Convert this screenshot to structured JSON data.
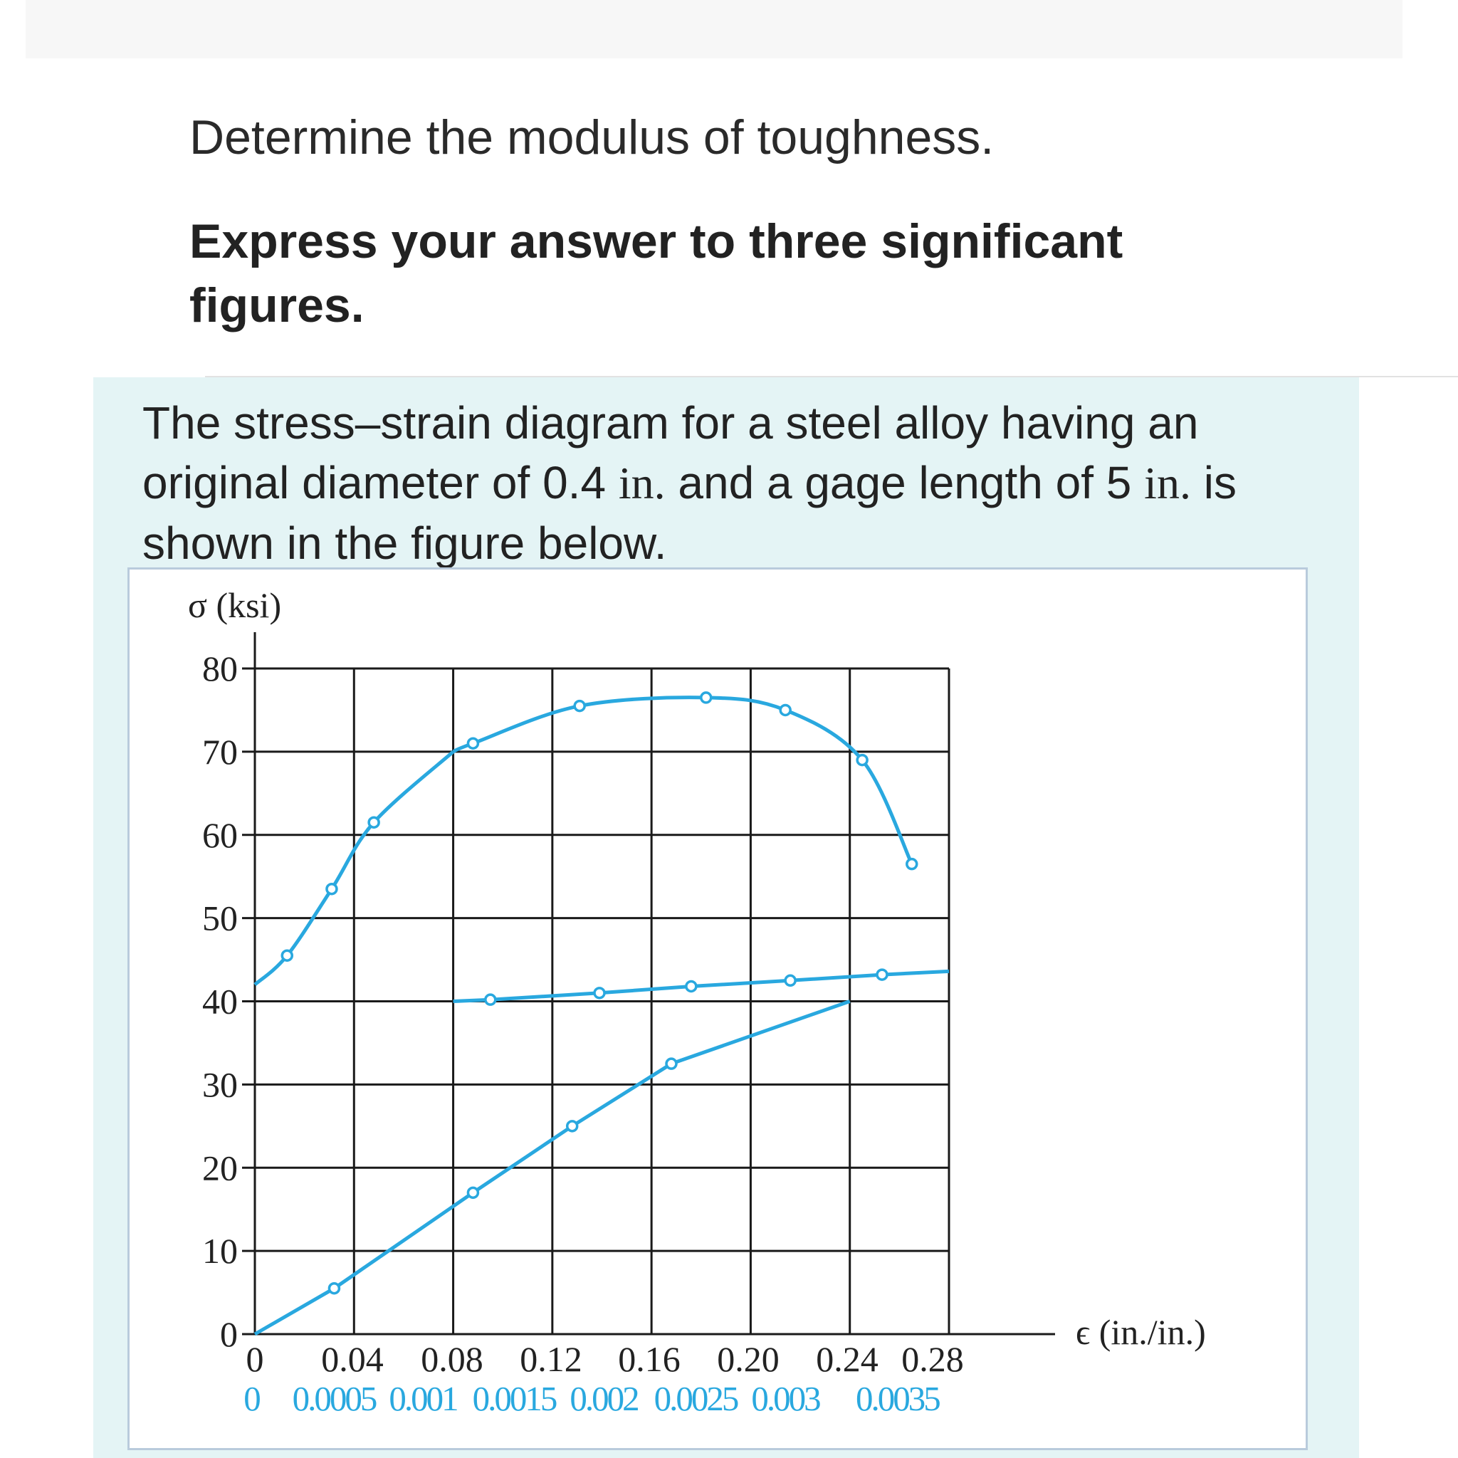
{
  "question": {
    "prompt": "Determine the modulus of toughness.",
    "instruction": "Express your answer to three significant figures."
  },
  "problem": {
    "text_before_unit1": "The stress–strain diagram for a steel alloy having an original diameter of 0.4 ",
    "unit1": "in.",
    "text_between": " and a gage length of 5 ",
    "unit2": "in.",
    "text_after": " is shown in the figure below."
  },
  "colors": {
    "curve": "#29a8df",
    "grid": "#1a1a1a",
    "axis_text": "#222222",
    "secondary_axis_text": "#29a8df",
    "panel_bg": "#e4f4f5"
  },
  "chart_data": {
    "type": "line",
    "ylabel": "σ (ksi)",
    "xlabel": "ϵ (in./in.)",
    "ylim": [
      0,
      80
    ],
    "y_ticks": [
      "0",
      "10",
      "20",
      "30",
      "40",
      "50",
      "60",
      "70",
      "80"
    ],
    "x_ticks_primary": [
      "0",
      "0.04",
      "0.08",
      "0.12",
      "0.16",
      "0.20",
      "0.24",
      "0.28"
    ],
    "x_ticks_secondary": [
      "0",
      "0.0005",
      "0.001",
      "0.0015",
      "0.002",
      "0.0025",
      "0.003",
      "0.0035"
    ],
    "xlim_primary": [
      0,
      0.28
    ],
    "xlim_secondary": [
      0,
      0.0035
    ],
    "grid": true,
    "series": [
      {
        "axis": "primary",
        "x": [
          0.013,
          0.031,
          0.048,
          0.088,
          0.131,
          0.182,
          0.214,
          0.245,
          0.265
        ],
        "y": [
          45.5,
          53.5,
          61.5,
          71,
          75.5,
          76.5,
          75,
          69,
          56.5
        ],
        "curve_start": [
          0,
          42
        ],
        "curve_via": [
          [
            0.08,
            70
          ]
        ]
      },
      {
        "axis": "secondary",
        "x": [
          0.0004,
          0.0011,
          0.0016,
          0.0021
        ],
        "y": [
          5.5,
          17,
          25,
          32.5
        ],
        "curve_start": [
          0,
          0
        ],
        "curve_via": [
          [
            0.003,
            40
          ]
        ]
      },
      {
        "axis": "primary",
        "x": [
          0.095,
          0.139,
          0.176,
          0.216,
          0.253
        ],
        "y": [
          40.2,
          41,
          41.8,
          42.5,
          43.2
        ],
        "curve_start": [
          0.08,
          40
        ],
        "curve_end": [
          0.28,
          43.6
        ]
      }
    ]
  }
}
